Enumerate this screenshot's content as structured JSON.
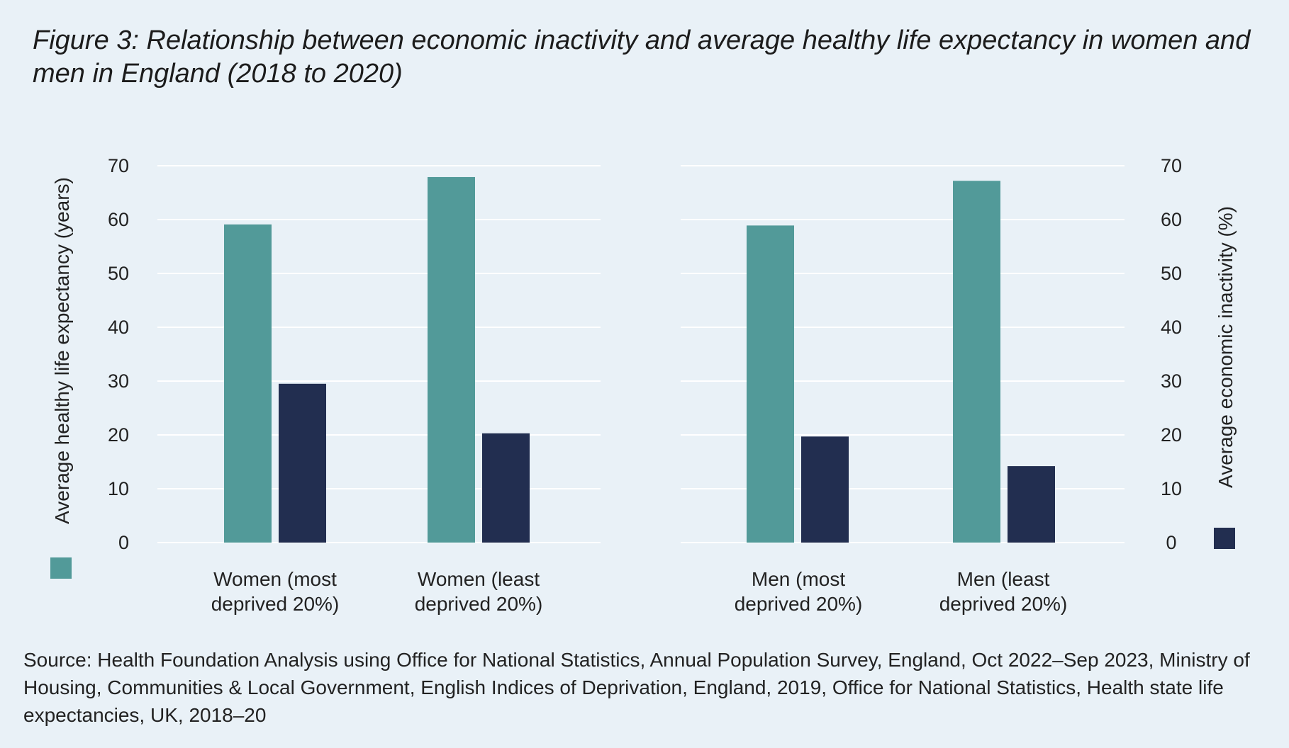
{
  "chart_data": {
    "type": "bar",
    "title": "Figure 3: Relationship between economic inactivity and average healthy life expectancy in women and men in England (2018 to 2020)",
    "categories": [
      [
        "Women (most",
        "deprived 20%)"
      ],
      [
        "Women (least",
        "deprived 20%)"
      ],
      [
        "Men (most",
        "deprived 20%)"
      ],
      [
        "Men (least",
        "deprived 20%)"
      ]
    ],
    "series": [
      {
        "name": "",
        "axis": "left",
        "values": [
          59.1,
          67.9,
          58.9,
          67.2
        ]
      },
      {
        "name": "",
        "axis": "right",
        "values": [
          29.5,
          20.3,
          19.7,
          14.2
        ]
      }
    ],
    "ylabel_left": "Average healthy life expectancy (years)",
    "ylabel_right": "Average economic inactivity (%)",
    "ylim": [
      0,
      70
    ],
    "yticks": [
      0,
      10,
      20,
      30,
      40,
      50,
      60,
      70
    ],
    "grid": true,
    "colors": {
      "series0": "#529a99",
      "series1": "#222e50",
      "grid": "#ffffff",
      "background": "#e9f1f7"
    }
  },
  "source": "Source: Health Foundation Analysis using Office for National Statistics, Annual Population Survey, England, Oct 2022–Sep 2023, Ministry of Housing, Communities & Local Government, English Indices of Deprivation, England, 2019, Office for National Statistics, Health state life expectancies, UK, 2018–20"
}
